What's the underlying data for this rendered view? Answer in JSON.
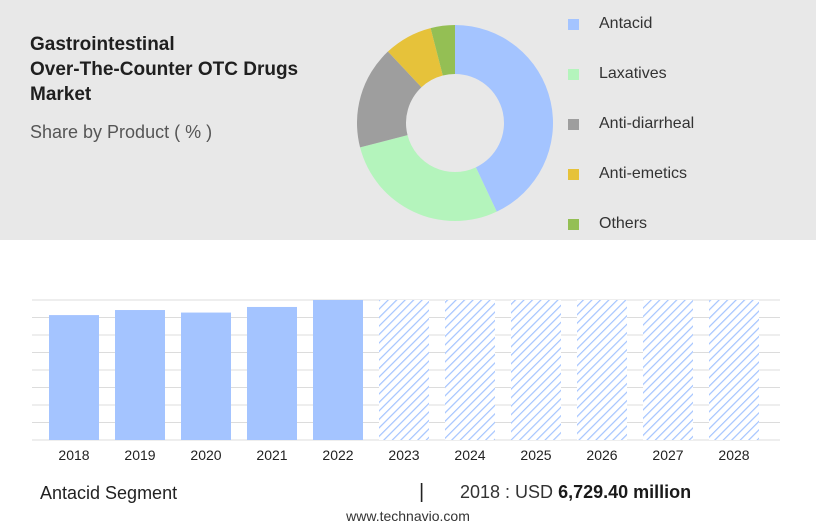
{
  "header": {
    "title_lines": [
      "Gastrointestinal",
      "Over-The-Counter OTC Drugs",
      "Market"
    ],
    "subtitle": "Share by Product ( % )"
  },
  "chart_data": [
    {
      "type": "pie",
      "variant": "donut",
      "labels": [
        "Antacid",
        "Laxatives",
        "Anti-diarrheal",
        "Anti-emetics",
        "Others"
      ],
      "values": [
        43,
        28,
        17,
        8,
        4
      ],
      "colors": [
        "#a4c4ff",
        "#b4f4bc",
        "#9e9e9e",
        "#e6c23a",
        "#94bf54"
      ],
      "legend": "right"
    },
    {
      "type": "bar",
      "categories": [
        "2018",
        "2019",
        "2020",
        "2021",
        "2022",
        "2023",
        "2024",
        "2025",
        "2026",
        "2027",
        "2028"
      ],
      "values": [
        6729.4,
        7002,
        6865,
        7167,
        7542,
        null,
        null,
        null,
        null,
        null,
        null
      ],
      "forecast_pattern": "hatched",
      "color": "#a4c4ff",
      "grid": true,
      "legend": "none"
    }
  ],
  "footer": {
    "segment": "Antacid Segment",
    "divider": "|",
    "value_prefix": "2018 : USD",
    "value_bold": "6,729.40 million",
    "site": "www.technavio.com"
  }
}
